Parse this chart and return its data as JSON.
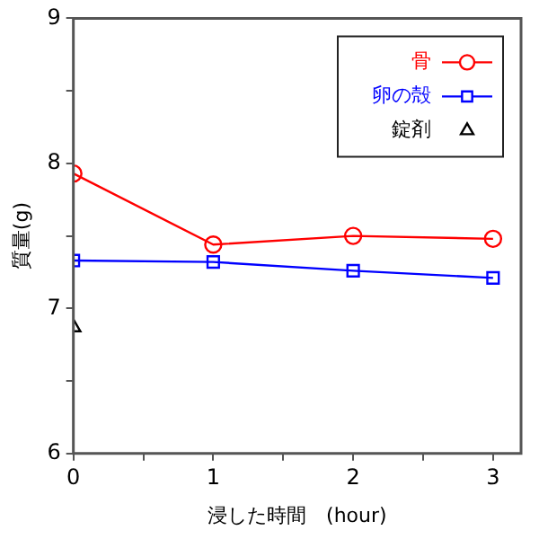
{
  "chart_data": {
    "type": "line",
    "xlabel": "浸した時間　(hour)",
    "ylabel": "質量(g)",
    "x": [
      0,
      1,
      2,
      3
    ],
    "series": [
      {
        "name": "骨",
        "color": "#ff0000",
        "marker": "circle",
        "values": [
          7.93,
          7.44,
          7.5,
          7.48
        ]
      },
      {
        "name": "卵の殻",
        "color": "#0000ff",
        "marker": "square",
        "values": [
          7.33,
          7.32,
          7.26,
          7.21
        ]
      },
      {
        "name": "錠剤",
        "type": "scatter",
        "color": "#000000",
        "marker": "triangle",
        "values": [
          6.87,
          null,
          null,
          null
        ]
      }
    ],
    "xlim": [
      0,
      3.2
    ],
    "xticks": [
      0,
      {
        "value": 0.5,
        "label": null
      },
      1,
      {
        "value": 1.5,
        "label": null
      },
      2,
      {
        "value": 2.5,
        "label": null
      },
      3
    ],
    "ylim": [
      6,
      9
    ],
    "yticks": [
      6,
      {
        "value": 6.5,
        "label": null
      },
      7,
      {
        "value": 7.5,
        "label": null
      },
      8,
      {
        "value": 8.5,
        "label": null
      },
      9
    ],
    "legend": "top right"
  }
}
